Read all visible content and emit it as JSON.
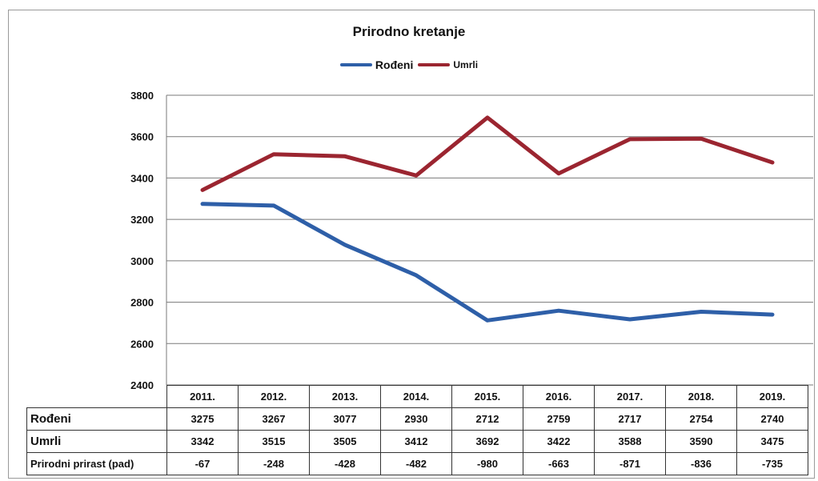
{
  "chart_data": {
    "type": "line",
    "title": "Prirodno kretanje",
    "categories": [
      "2011.",
      "2012.",
      "2013.",
      "2014.",
      "2015.",
      "2016.",
      "2017.",
      "2018.",
      "2019."
    ],
    "series": [
      {
        "name": "Rođeni",
        "color": "#2e5fa8",
        "values": [
          3275,
          3267,
          3077,
          2930,
          2712,
          2759,
          2717,
          2754,
          2740
        ]
      },
      {
        "name": "Umrli",
        "color": "#9b2530",
        "values": [
          3342,
          3515,
          3505,
          3412,
          3692,
          3422,
          3588,
          3590,
          3475
        ]
      }
    ],
    "ylim": [
      2400,
      3800
    ],
    "yticks": [
      "2400",
      "2600",
      "2800",
      "3000",
      "3200",
      "3400",
      "3600",
      "3800"
    ],
    "grid": true,
    "legend_position": "top-center",
    "table": {
      "rows": [
        {
          "label": "Rođeni",
          "values": [
            "3275",
            "3267",
            "3077",
            "2930",
            "2712",
            "2759",
            "2717",
            "2754",
            "2740"
          ]
        },
        {
          "label": "Umrli",
          "values": [
            "3342",
            "3515",
            "3505",
            "3412",
            "3692",
            "3422",
            "3588",
            "3590",
            "3475"
          ]
        },
        {
          "label": "Prirodni prirast (pad)",
          "values": [
            "-67",
            "-248",
            "-428",
            "-482",
            "-980",
            "-663",
            "-871",
            "-836",
            "-735"
          ]
        }
      ]
    }
  }
}
